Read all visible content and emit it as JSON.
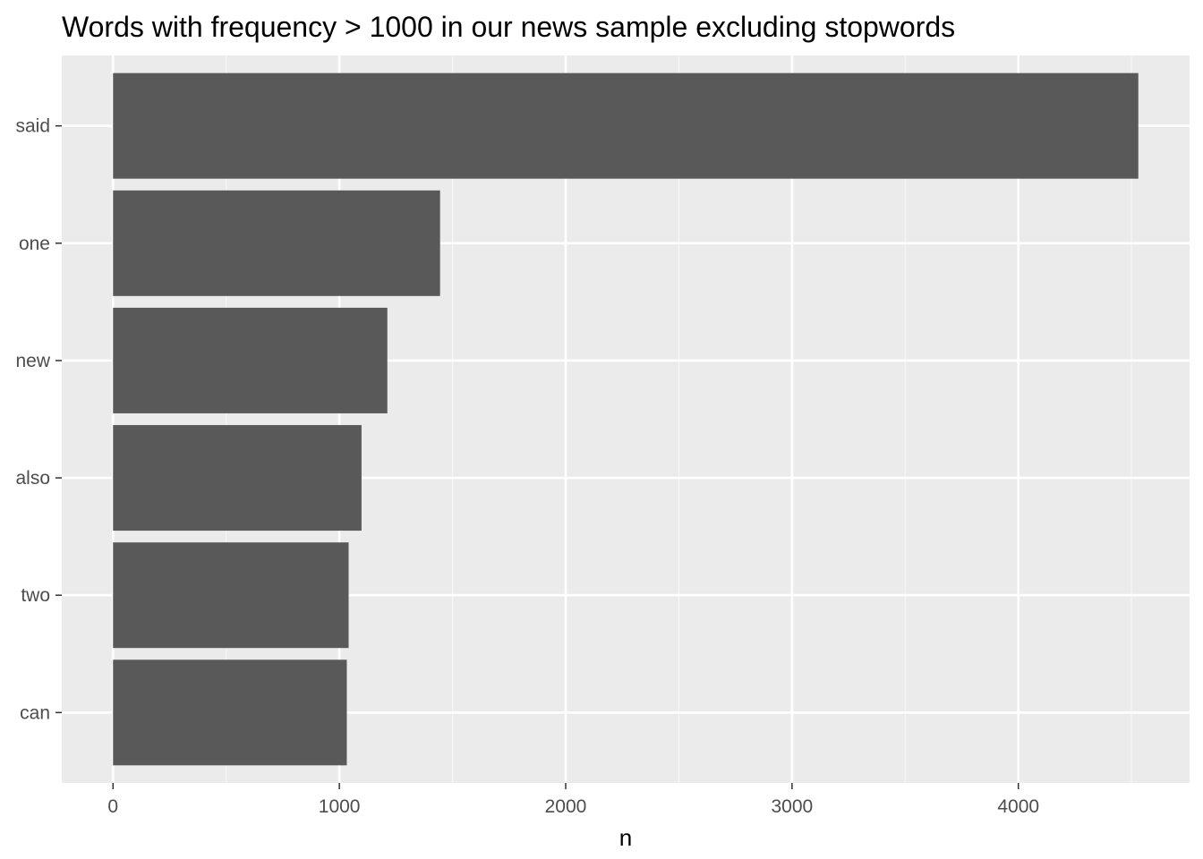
{
  "chart_data": {
    "type": "bar",
    "orientation": "horizontal",
    "title": "Words with frequency > 1000 in our news sample excluding stopwords",
    "xlabel": "n",
    "ylabel": "",
    "categories": [
      "said",
      "one",
      "new",
      "also",
      "two",
      "can"
    ],
    "values": [
      4530,
      1445,
      1212,
      1098,
      1041,
      1033
    ],
    "x_ticks": [
      0,
      1000,
      2000,
      3000,
      4000
    ],
    "x_tick_labels": [
      "0",
      "1000",
      "2000",
      "3000",
      "4000"
    ],
    "xlim": [
      -226.5,
      4756.5
    ],
    "grid": true,
    "legend": "none",
    "colors": {
      "panel_background": "#ebebeb",
      "grid_major": "#ffffff",
      "grid_minor": "#f5f5f5",
      "bar_fill": "#595959",
      "tick_label": "#4d4d4d",
      "tick_mark": "#333333"
    }
  }
}
